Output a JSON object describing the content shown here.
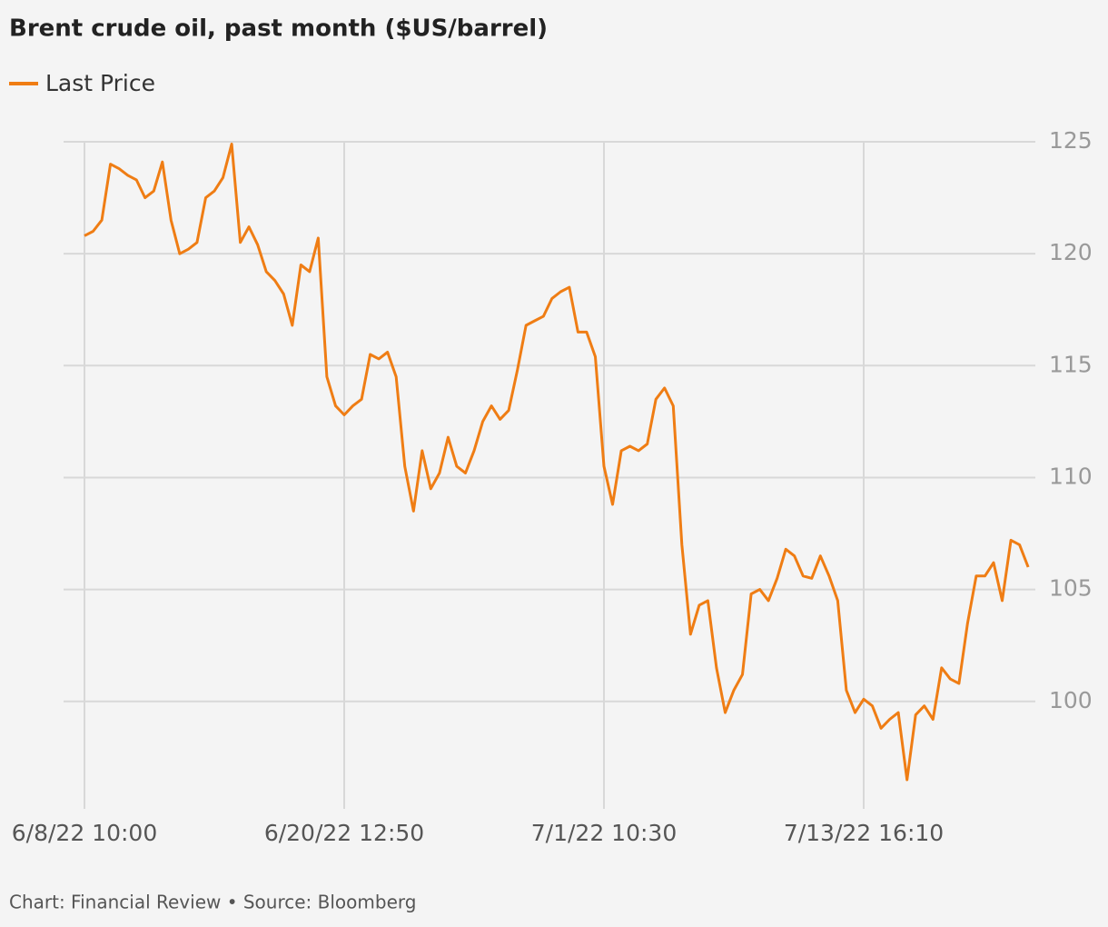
{
  "chart_data": {
    "type": "line",
    "title": "Brent crude oil, past month ($US/barrel)",
    "footer": "Chart: Financial Review • Source: Bloomberg",
    "categories": [
      "6/8/22 10:00",
      null,
      null,
      null,
      null,
      null,
      null,
      null,
      null,
      null,
      null,
      null,
      null,
      null,
      null,
      null,
      null,
      null,
      null,
      null,
      null,
      null,
      null,
      null,
      null,
      null,
      null,
      null,
      null,
      null,
      "6/20/22 12:50",
      null,
      null,
      null,
      null,
      null,
      null,
      null,
      null,
      null,
      null,
      null,
      null,
      null,
      null,
      null,
      null,
      null,
      null,
      null,
      null,
      null,
      null,
      null,
      null,
      null,
      null,
      null,
      null,
      null,
      "7/1/22 10:30",
      null,
      null,
      null,
      null,
      null,
      null,
      null,
      null,
      null,
      null,
      null,
      null,
      null,
      null,
      null,
      null,
      null,
      null,
      null,
      null,
      null,
      null,
      null,
      null,
      null,
      null,
      null,
      null,
      null,
      "7/13/22 16:10",
      null,
      null,
      null,
      null,
      null,
      null,
      null,
      null,
      null,
      null,
      null,
      null,
      null,
      null,
      null,
      null,
      null,
      null,
      null
    ],
    "series": [
      {
        "name": "Last Price",
        "color": "#ef7d14",
        "values": [
          120.8,
          121,
          121.5,
          124,
          123.8,
          123.5,
          123.3,
          122.5,
          122.8,
          124.1,
          121.5,
          120,
          120.2,
          120.5,
          122.5,
          122.8,
          123.4,
          124.9,
          120.5,
          121.2,
          120.4,
          119.2,
          118.8,
          118.2,
          116.8,
          119.5,
          119.2,
          120.7,
          114.5,
          113.2,
          112.8,
          113.2,
          113.5,
          115.5,
          115.3,
          115.6,
          114.5,
          110.5,
          108.5,
          111.2,
          109.5,
          110.2,
          111.8,
          110.5,
          110.2,
          111.2,
          112.5,
          113.2,
          112.6,
          113,
          114.8,
          116.8,
          117,
          117.2,
          118,
          118.3,
          118.5,
          116.5,
          116.5,
          115.4,
          110.5,
          108.8,
          111.2,
          111.4,
          111.2,
          111.5,
          113.5,
          114,
          113.2,
          107,
          103,
          104.3,
          104.5,
          101.5,
          99.5,
          100.5,
          101.2,
          104.8,
          105,
          104.5,
          105.5,
          106.8,
          106.5,
          105.6,
          105.5,
          106.5,
          105.6,
          104.5,
          100.5,
          99.5,
          100.1,
          99.8,
          98.8,
          99.2,
          99.5,
          96.5,
          99.4,
          99.8,
          99.2,
          101.5,
          101,
          100.8,
          103.5,
          105.6,
          105.6,
          106.2,
          104.5,
          107.2,
          107,
          106
        ]
      }
    ],
    "ylim": [
      95.2,
      125
    ],
    "yticks": [
      100,
      105,
      110,
      115,
      120,
      125
    ],
    "grid": true
  }
}
